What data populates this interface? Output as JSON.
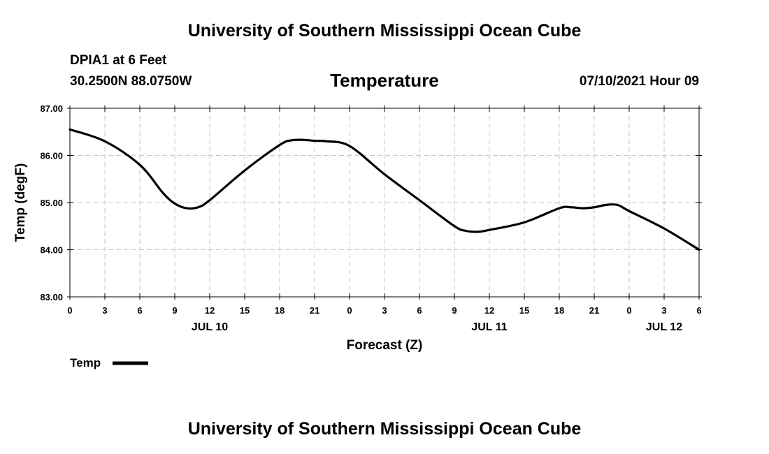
{
  "page": {
    "title_top": "University of Southern Mississippi Ocean Cube",
    "title_bottom": "University of Southern Mississippi Ocean Cube",
    "station": "DPIA1 at 6 Feet",
    "coords": "30.2500N  88.0750W",
    "datetime": "07/10/2021 Hour 09"
  },
  "chart_data": {
    "type": "line",
    "title": "Temperature",
    "xlabel": "Forecast (Z)",
    "ylabel": "Temp (degF)",
    "xlim": [
      0,
      54
    ],
    "ylim": [
      83.0,
      87.0
    ],
    "yticks": [
      "83.00",
      "84.00",
      "85.00",
      "86.00",
      "87.00"
    ],
    "yticks_values": [
      83,
      84,
      85,
      86,
      87
    ],
    "xticks_hours": [
      0,
      3,
      6,
      9,
      12,
      15,
      18,
      21,
      24,
      27,
      30,
      33,
      36,
      39,
      42,
      45,
      48,
      51,
      54
    ],
    "xticks_labels": [
      "0",
      "3",
      "6",
      "9",
      "12",
      "15",
      "18",
      "21",
      "0",
      "3",
      "6",
      "9",
      "12",
      "15",
      "18",
      "21",
      "0",
      "3",
      "6"
    ],
    "date_labels": [
      {
        "hour": 12,
        "label": "JUL 10"
      },
      {
        "hour": 36,
        "label": "JUL 11"
      },
      {
        "hour": 51,
        "label": "JUL 12"
      }
    ],
    "grid": true,
    "legend": {
      "position": "bottom-left",
      "entries": [
        "Temp"
      ]
    },
    "series": [
      {
        "name": "Temp",
        "x": [
          0,
          3,
          6,
          8,
          9,
          10,
          11,
          12,
          15,
          18,
          19,
          20,
          21,
          22,
          24,
          27,
          30,
          33,
          34,
          35,
          36,
          39,
          42,
          43,
          44,
          45,
          46,
          47,
          48,
          51,
          54
        ],
        "values": [
          86.55,
          86.3,
          85.8,
          85.2,
          84.98,
          84.88,
          84.9,
          85.05,
          85.68,
          86.22,
          86.32,
          86.33,
          86.31,
          86.3,
          86.2,
          85.6,
          85.05,
          84.5,
          84.4,
          84.38,
          84.42,
          84.58,
          84.88,
          84.9,
          84.88,
          84.9,
          84.95,
          84.95,
          84.82,
          84.45,
          84.0
        ]
      }
    ]
  }
}
